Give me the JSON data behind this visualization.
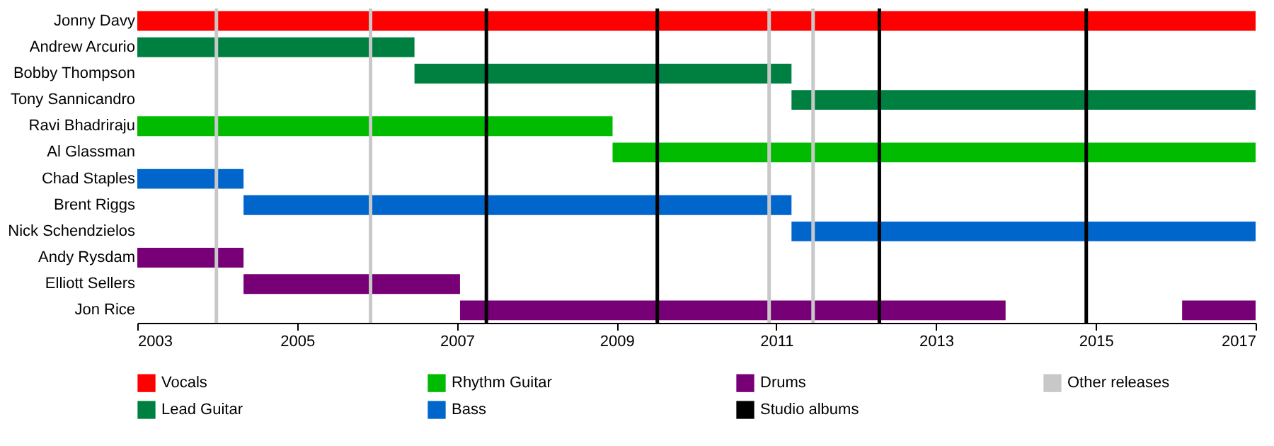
{
  "chart_data": {
    "type": "bar",
    "orientation": "horizontal",
    "categories": [
      "Jonny Davy",
      "Andrew Arcurio",
      "Bobby Thompson",
      "Tony Sannicandro",
      "Ravi Bhadriraju",
      "Al Glassman",
      "Chad Staples",
      "Brent Riggs",
      "Nick Schendzielos",
      "Andy Rysdam",
      "Elliott Sellers",
      "Jon Rice"
    ],
    "series": [
      {
        "name": "Vocals",
        "color": "#ff0000",
        "values": [
          14,
          null,
          null,
          null,
          null,
          null,
          null,
          null,
          null,
          null,
          null,
          null
        ],
        "base": [
          2003,
          null,
          null,
          null,
          null,
          null,
          null,
          null,
          null,
          null,
          null,
          null
        ]
      },
      {
        "name": "Lead Guitar",
        "color": "#008040",
        "values": [
          null,
          3.47,
          4.72,
          5.81,
          null,
          null,
          null,
          null,
          null,
          null,
          null,
          null
        ],
        "base": [
          null,
          2003,
          2006.47,
          2011.19,
          null,
          null,
          null,
          null,
          null,
          null,
          null,
          null
        ]
      },
      {
        "name": "Rhythm Guitar",
        "color": "#00bb00",
        "values": [
          null,
          null,
          null,
          null,
          5.95,
          8.05,
          null,
          null,
          null,
          null,
          null,
          null
        ],
        "base": [
          null,
          null,
          null,
          null,
          2003,
          2008.95,
          null,
          null,
          null,
          null,
          null,
          null
        ]
      },
      {
        "name": "Bass",
        "color": "#0066cc",
        "values": [
          null,
          null,
          null,
          null,
          null,
          null,
          1.33,
          6.86,
          5.81,
          null,
          null,
          null
        ],
        "base": [
          null,
          null,
          null,
          null,
          null,
          null,
          2003,
          2004.33,
          2011.19,
          null,
          null,
          null
        ]
      },
      {
        "name": "Drums",
        "color": "#770077",
        "values": [
          null,
          null,
          null,
          null,
          null,
          null,
          null,
          null,
          null,
          1.33,
          2.71,
          6.83
        ],
        "base": [
          null,
          null,
          null,
          null,
          null,
          null,
          null,
          null,
          null,
          2003,
          2004.33,
          2007.04
        ]
      },
      {
        "color": "#770077",
        "values": [
          null,
          null,
          null,
          null,
          null,
          null,
          null,
          null,
          null,
          null,
          null,
          0.92
        ],
        "base": [
          null,
          null,
          null,
          null,
          null,
          null,
          null,
          null,
          null,
          null,
          null,
          2016.08
        ]
      }
    ],
    "xlim": [
      2003,
      2017
    ],
    "xticks": [
      2003,
      2005,
      2007,
      2009,
      2011,
      2013,
      2015,
      2017
    ],
    "grid": false,
    "legend": "bottom",
    "ref_lines": [
      {
        "axis": "x",
        "value": 2007.37,
        "label": "Studio albums",
        "color": "#000000"
      },
      {
        "axis": "x",
        "value": 2009.51,
        "color": "#000000"
      },
      {
        "axis": "x",
        "value": 2012.29,
        "color": "#000000"
      },
      {
        "axis": "x",
        "value": 2014.88,
        "color": "#000000"
      },
      {
        "axis": "x",
        "value": 2003.99,
        "label": "Other releases",
        "color": "#c8c8c8"
      },
      {
        "axis": "x",
        "value": 2005.92,
        "color": "#c8c8c8"
      },
      {
        "axis": "x",
        "value": 2010.91,
        "color": "#c8c8c8"
      },
      {
        "axis": "x",
        "value": 2011.46,
        "color": "#c8c8c8"
      }
    ]
  }
}
